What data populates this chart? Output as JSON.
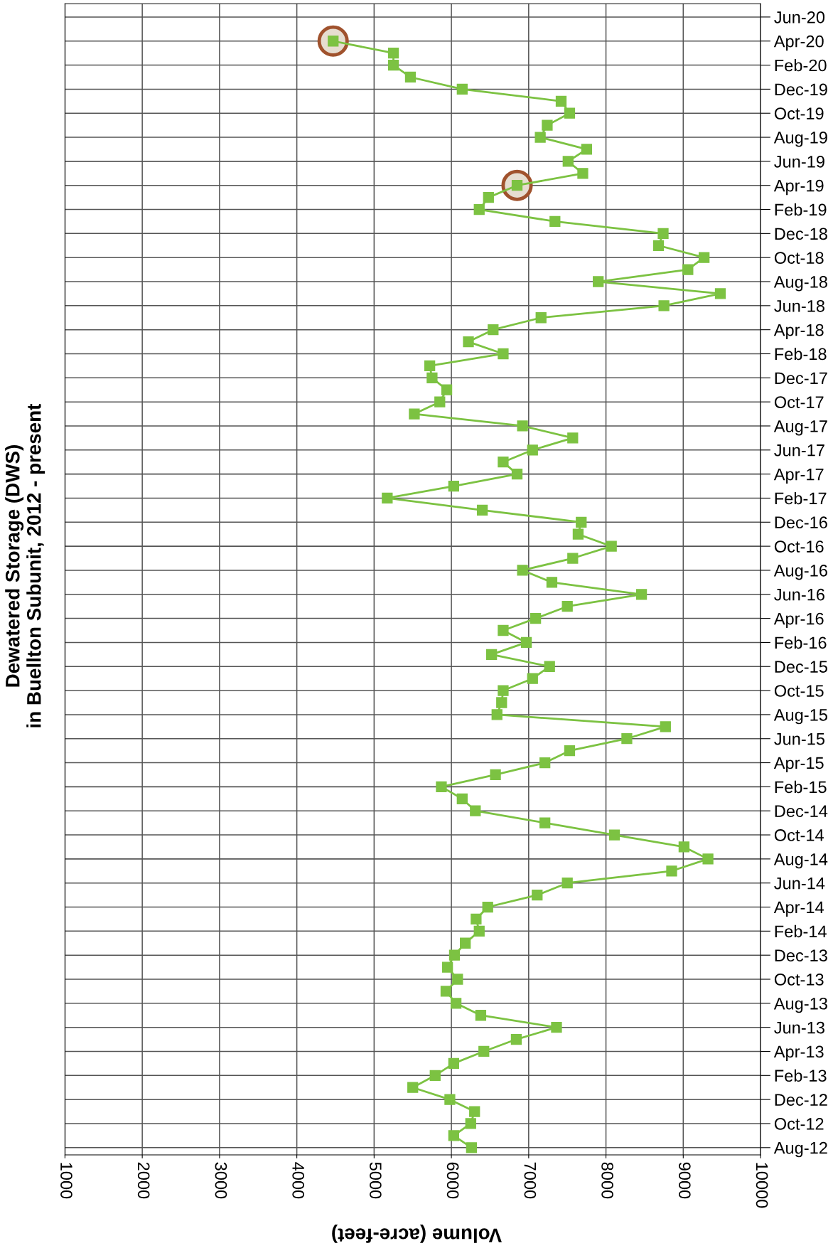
{
  "chart_data": {
    "type": "line",
    "orientation": "horizontal",
    "title": "Dewatered Storage (DWS)\nin Buellton Subunit, 2012 - present",
    "xlabel": "Volume (acre-feet)",
    "categories": [
      "Jun-20",
      null,
      "Apr-20",
      null,
      "Feb-20",
      null,
      "Dec-19",
      null,
      "Oct-19",
      null,
      "Aug-19",
      null,
      "Jun-19",
      null,
      "Apr-19",
      null,
      "Feb-19",
      null,
      "Dec-18",
      null,
      "Oct-18",
      null,
      "Aug-18",
      null,
      "Jun-18",
      null,
      "Apr-18",
      null,
      "Feb-18",
      null,
      "Dec-17",
      null,
      "Oct-17",
      null,
      "Aug-17",
      null,
      "Jun-17",
      null,
      "Apr-17",
      null,
      "Feb-17",
      null,
      "Dec-16",
      null,
      "Oct-16",
      null,
      "Aug-16",
      null,
      "Jun-16",
      null,
      "Apr-16",
      null,
      "Feb-16",
      null,
      "Dec-15",
      null,
      "Oct-15",
      null,
      "Aug-15",
      null,
      "Jun-15",
      null,
      "Apr-15",
      null,
      "Feb-15",
      null,
      "Dec-14",
      null,
      "Oct-14",
      null,
      "Aug-14",
      null,
      "Jun-14",
      null,
      "Apr-14",
      null,
      "Feb-14",
      null,
      "Dec-13",
      null,
      "Oct-13",
      null,
      "Aug-13",
      null,
      "Jun-13",
      null,
      "Apr-13",
      null,
      "Feb-13",
      null,
      "Dec-12",
      null,
      "Oct-12",
      null,
      "Aug-12"
    ],
    "series": [
      {
        "color": "#7cc242",
        "marker": "square",
        "line_style": "solid",
        "values": [
          null,
          null,
          4470,
          5250,
          5250,
          5470,
          6140,
          7420,
          7530,
          7240,
          7150,
          7750,
          7510,
          7700,
          6850,
          6480,
          6360,
          7340,
          8740,
          8680,
          9270,
          9060,
          7900,
          9480,
          8750,
          7160,
          6540,
          6220,
          6670,
          5720,
          5750,
          5940,
          5850,
          5520,
          6920,
          7570,
          7050,
          6670,
          6850,
          6030,
          5170,
          6400,
          7680,
          7640,
          8070,
          7570,
          6920,
          7300,
          8460,
          7500,
          7090,
          6670,
          6970,
          6520,
          7270,
          7050,
          6670,
          6650,
          6590,
          8770,
          8270,
          7530,
          7210,
          6570,
          5870,
          6140,
          6310,
          7210,
          8110,
          9010,
          9320,
          8850,
          7500,
          7110,
          6470,
          6320,
          6360,
          6180,
          6040,
          5950,
          6080,
          5930,
          6060,
          6380,
          7360,
          6840,
          6420,
          6030,
          5790,
          5500,
          5980,
          6300,
          6250,
          6030,
          6260
        ]
      },
      {
        "type": "scatter",
        "color": "#a0522d",
        "marker": "circle",
        "values": [
          null,
          null,
          4470,
          null,
          null,
          null,
          null,
          null,
          null,
          null,
          null,
          null,
          null,
          null,
          6850,
          null,
          null,
          null,
          null,
          null,
          null,
          null,
          null,
          null,
          null,
          null,
          null,
          null,
          null,
          null,
          null,
          null,
          null,
          null,
          null,
          null,
          null,
          null,
          null,
          null,
          null,
          null,
          null,
          null,
          null,
          null,
          null,
          null,
          null,
          null,
          null,
          null,
          null,
          null,
          null,
          null,
          null,
          null,
          null,
          null,
          null,
          null,
          null,
          null,
          null,
          null,
          null,
          null,
          null,
          null,
          null,
          null,
          null,
          null,
          null,
          null,
          null,
          null,
          null,
          null,
          null,
          null,
          null,
          null,
          null,
          null,
          null,
          null,
          null,
          null,
          null,
          null,
          null,
          null,
          null
        ]
      }
    ],
    "xlim": [
      1000,
      10000
    ],
    "xticks": [
      1000,
      2000,
      3000,
      4000,
      5000,
      6000,
      7000,
      8000,
      9000,
      10000
    ],
    "grid": true
  }
}
